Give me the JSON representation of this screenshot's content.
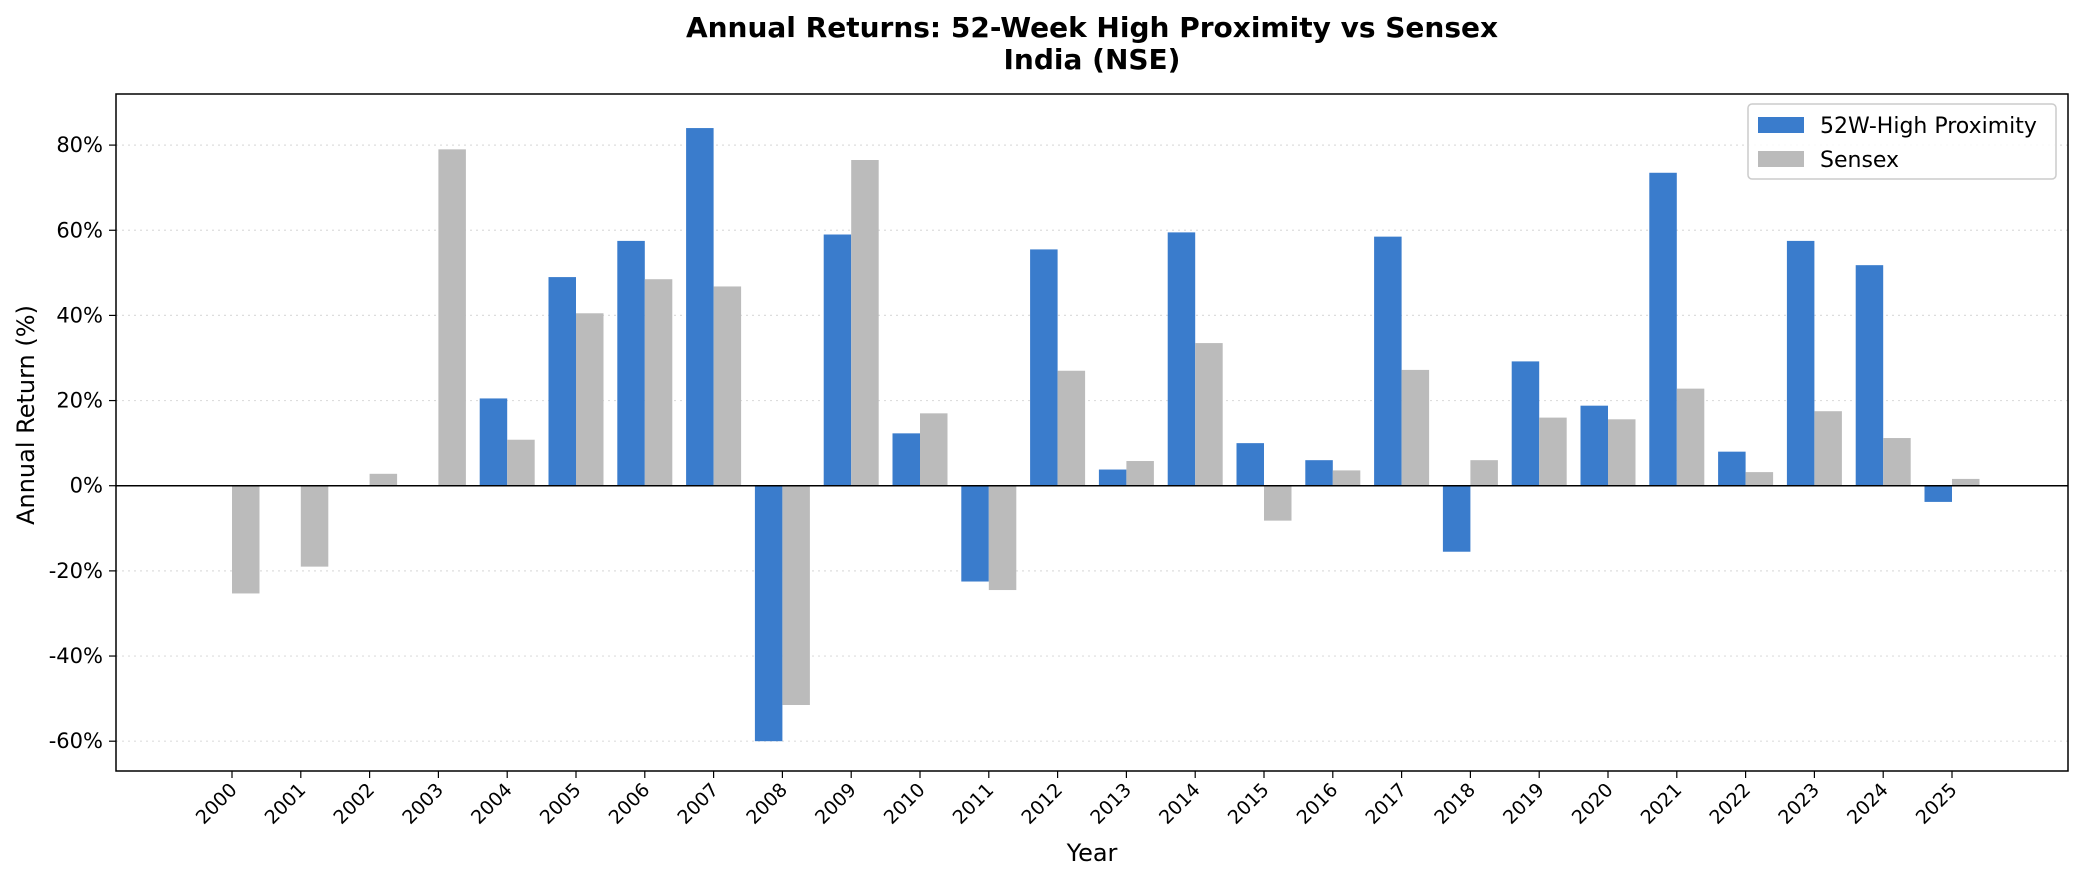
{
  "chart_data": {
    "type": "bar",
    "title": "Annual Returns: 52-Week High Proximity vs Sensex",
    "subtitle": "India (NSE)",
    "xlabel": "Year",
    "ylabel": "Annual Return (%)",
    "ylim": [
      -67,
      92
    ],
    "yticks": [
      -60,
      -40,
      -20,
      0,
      20,
      40,
      60,
      80
    ],
    "ytick_labels": [
      "-60%",
      "-40%",
      "-20%",
      "0%",
      "20%",
      "40%",
      "60%",
      "80%"
    ],
    "grid": "horizontal dotted",
    "legend_position": "top-right",
    "categories": [
      "2000",
      "2001",
      "2002",
      "2003",
      "2004",
      "2005",
      "2006",
      "2007",
      "2008",
      "2009",
      "2010",
      "2011",
      "2012",
      "2013",
      "2014",
      "2015",
      "2016",
      "2017",
      "2018",
      "2019",
      "2020",
      "2021",
      "2022",
      "2023",
      "2024",
      "2025"
    ],
    "series": [
      {
        "name": "52W-High Proximity",
        "color": "#3a7ccc",
        "values": [
          null,
          null,
          null,
          null,
          20.5,
          49,
          57.5,
          84,
          -60,
          59,
          12.3,
          -22.5,
          55.5,
          3.8,
          59.5,
          10,
          6,
          58.5,
          -15.5,
          29.2,
          18.8,
          73.5,
          8,
          57.5,
          51.8,
          -3.8
        ]
      },
      {
        "name": "Sensex",
        "color": "#bbbbbb",
        "values": [
          -25.3,
          -19,
          2.8,
          79,
          10.8,
          40.5,
          48.5,
          46.8,
          -51.5,
          76.5,
          17,
          -24.5,
          27,
          5.8,
          33.5,
          -8.2,
          3.6,
          27.2,
          6,
          16,
          15.6,
          22.8,
          3.2,
          17.5,
          11.2,
          1.6
        ]
      }
    ]
  }
}
